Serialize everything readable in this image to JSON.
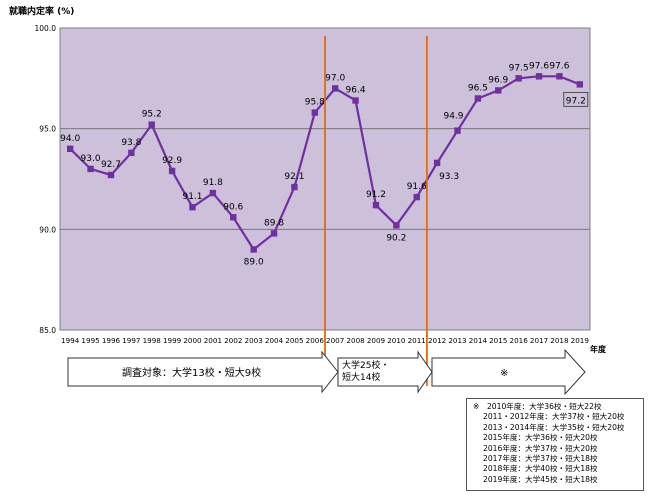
{
  "chart_data": {
    "type": "line",
    "ylabel": "就職内定率 (%)",
    "xlabel": "年度",
    "ylim": [
      85.0,
      100.0
    ],
    "yticks": [
      "85.0",
      "90.0",
      "95.0",
      "100.0"
    ],
    "categories": [
      "1994",
      "1995",
      "1996",
      "1997",
      "1998",
      "1999",
      "2000",
      "2001",
      "2002",
      "2003",
      "2004",
      "2005",
      "2006",
      "2007",
      "2008",
      "2009",
      "2010",
      "2011",
      "2012",
      "2013",
      "2014",
      "2015",
      "2016",
      "2017",
      "2018",
      "2019"
    ],
    "values": [
      94.0,
      93.0,
      92.7,
      93.8,
      95.2,
      92.9,
      91.1,
      91.8,
      90.6,
      89.0,
      89.8,
      92.1,
      95.8,
      97.0,
      96.4,
      91.2,
      90.2,
      91.6,
      93.3,
      94.9,
      96.5,
      96.9,
      97.5,
      97.6,
      97.6,
      97.2
    ],
    "data_labels": [
      "94.0",
      "93.0",
      "92.7",
      "93.8",
      "95.2",
      "92.9",
      "91.1",
      "91.8",
      "90.6",
      "89.0",
      "89.8",
      "92.1",
      "95.8",
      "97.0",
      "96.4",
      "91.2",
      "90.2",
      "91.6",
      "93.3",
      "",
      "96.5",
      "96.9",
      "97.5",
      "97.6",
      "97.6",
      "97.2"
    ],
    "line_color": "#7030a0",
    "plot_background": "#ccc0da",
    "divider_color": "#e36c09",
    "grid": true,
    "dividers_after": [
      "2006",
      "2011"
    ],
    "annotations": [
      {
        "text": "94.9"
      }
    ],
    "periods": [
      {
        "label": "調査対象：大学13校・短大9校"
      },
      {
        "label_lines": [
          "大学25校・",
          "短大14校"
        ]
      },
      {
        "label": "※"
      }
    ]
  },
  "note": {
    "lines": [
      "※　2010年度：大学36校・短大22校",
      "2011・2012年度：大学37校・短大20校",
      "2013・2014年度：大学35校・短大20校",
      "2015年度：大学36校・短大20校",
      "2016年度：大学37校・短大20校",
      "2017年度：大学37校・短大18校",
      "2018年度：大学40校・短大18校",
      "2019年度：大学45校・短大18校"
    ]
  }
}
